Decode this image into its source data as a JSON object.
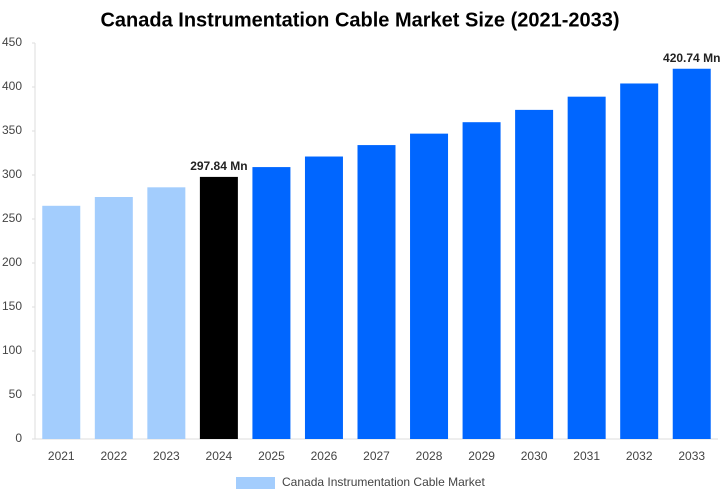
{
  "chart_data": {
    "type": "bar",
    "title": "Canada Instrumentation Cable Market Size (2021-2033)",
    "categories": [
      "2021",
      "2022",
      "2023",
      "2024",
      "2025",
      "2026",
      "2027",
      "2028",
      "2029",
      "2030",
      "2031",
      "2032",
      "2033"
    ],
    "series": [
      {
        "name": "Canada Instrumentation Cable Market",
        "color": "#a3cdfd",
        "values": [
          265,
          275,
          286,
          297.84,
          309,
          321,
          334,
          347,
          360,
          374,
          389,
          404,
          420.74
        ],
        "value_labels": [
          null,
          null,
          null,
          "297.84 Mn",
          null,
          null,
          null,
          null,
          null,
          null,
          null,
          null,
          "420.74 Mn"
        ],
        "colors": [
          "#a3cdfd",
          "#a3cdfd",
          "#a3cdfd",
          "#000000",
          "#0066ff",
          "#0066ff",
          "#0066ff",
          "#0066ff",
          "#0066ff",
          "#0066ff",
          "#0066ff",
          "#0066ff",
          "#0066ff"
        ]
      }
    ],
    "ylim": [
      0,
      450
    ],
    "yticks": [
      0,
      50,
      100,
      150,
      200,
      250,
      300,
      350,
      400,
      450
    ],
    "grid": false
  }
}
